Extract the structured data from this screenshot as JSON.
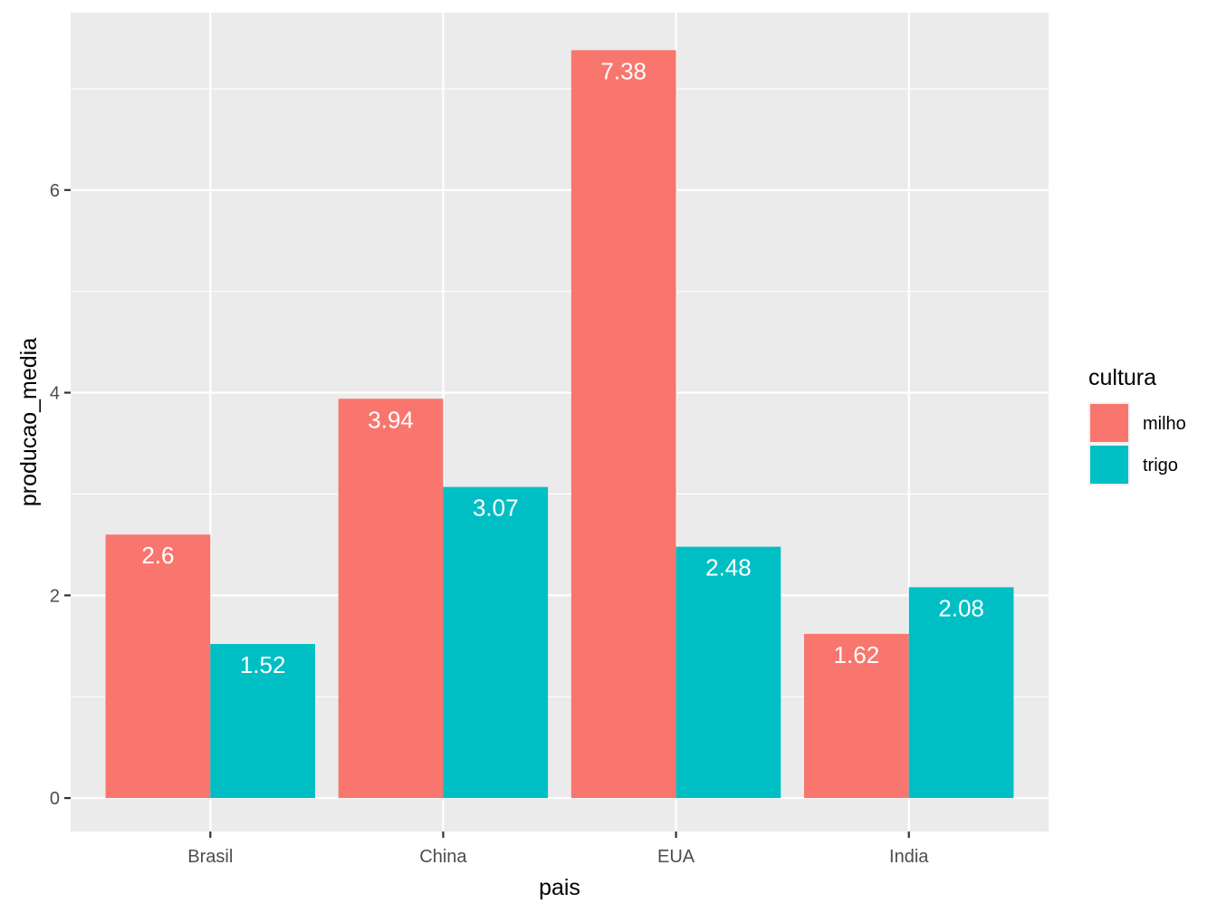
{
  "chart_data": {
    "type": "bar",
    "title": "",
    "xlabel": "pais",
    "ylabel": "producao_media",
    "categories": [
      "Brasil",
      "China",
      "EUA",
      "India"
    ],
    "series": [
      {
        "name": "milho",
        "color": "#F8766D",
        "values": [
          2.6,
          3.94,
          7.38,
          1.62
        ],
        "labels": [
          "2.6",
          "3.94",
          "7.38",
          "1.62"
        ]
      },
      {
        "name": "trigo",
        "color": "#00BFC4",
        "values": [
          1.52,
          3.07,
          2.48,
          2.08
        ],
        "labels": [
          "1.52",
          "3.07",
          "2.48",
          "2.08"
        ]
      }
    ],
    "ylim": [
      -0.33,
      7.75
    ],
    "yticks": [
      0,
      2,
      4,
      6
    ],
    "ytick_labels": [
      "0",
      "2",
      "4",
      "6"
    ],
    "grid": true,
    "legend": {
      "title": "cultura",
      "position": "right"
    },
    "panel_color": "#EBEBEB",
    "grid_color": "#FFFFFF"
  }
}
